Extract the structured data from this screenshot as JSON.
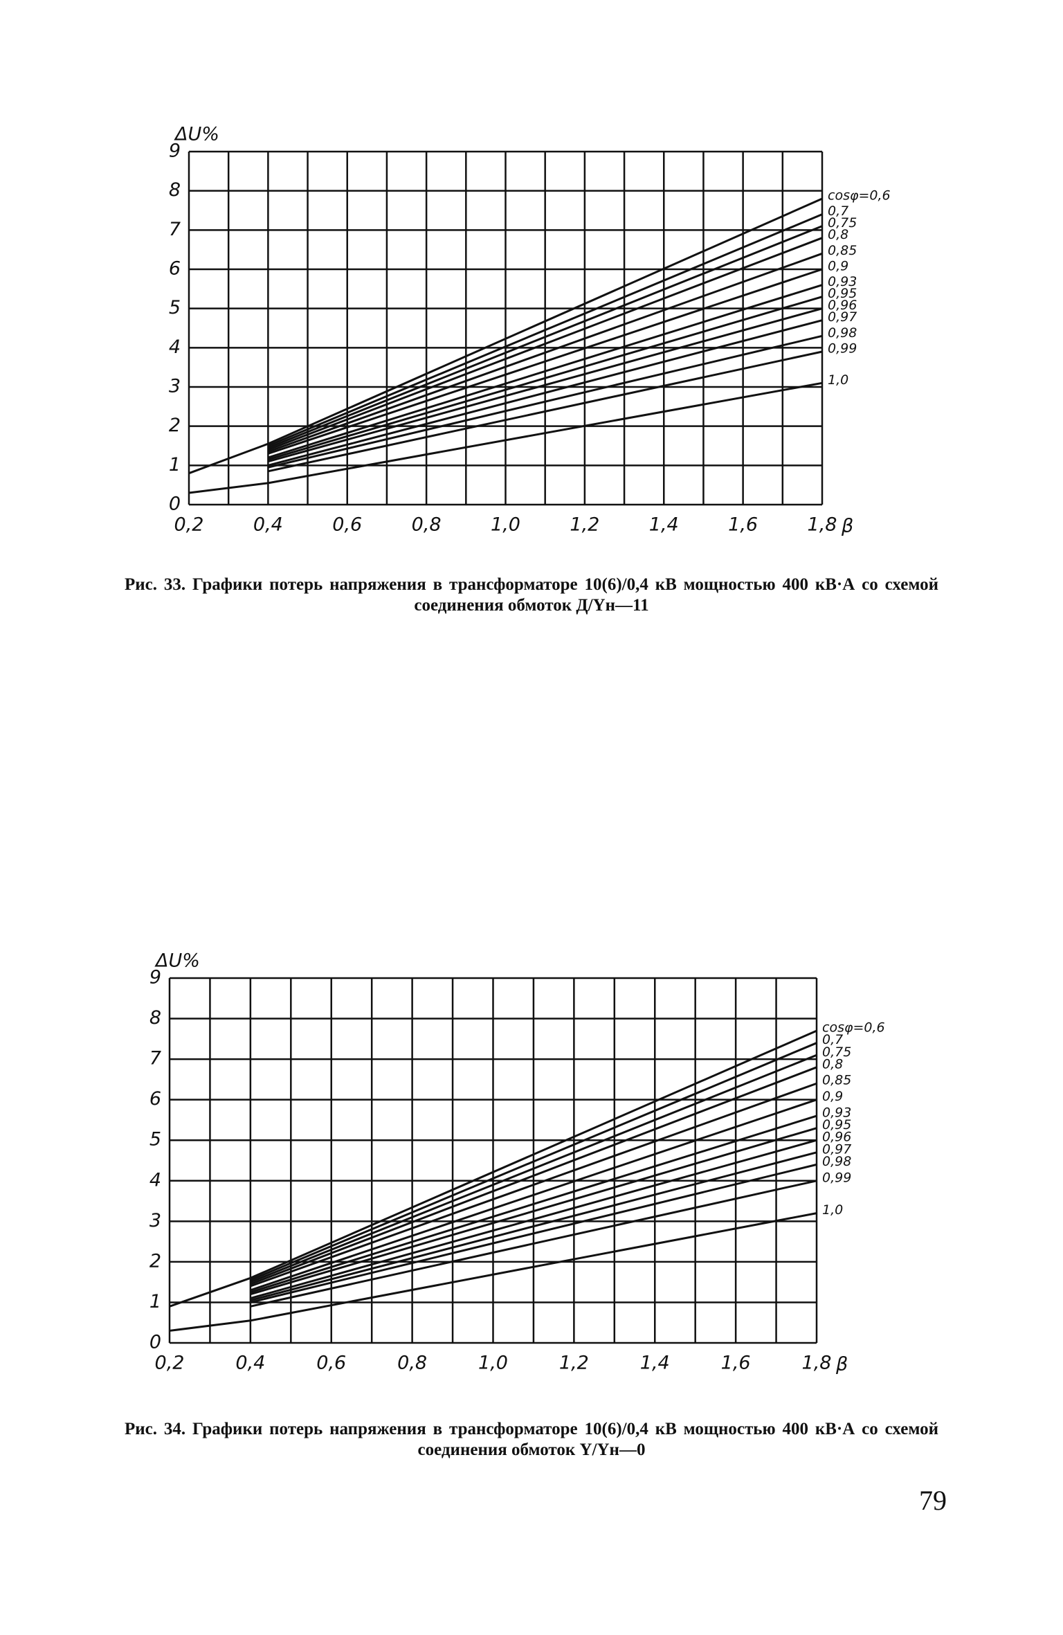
{
  "chart_data": [
    {
      "type": "line",
      "y_label": "ΔU%",
      "x_label": "β",
      "x": [
        0.2,
        0.4,
        1.8
      ],
      "xlim": [
        0.2,
        1.8
      ],
      "ylim": [
        0,
        9
      ],
      "xticks": [
        {
          "value": 0.2,
          "label": "0,2"
        },
        {
          "value": 0.4,
          "label": "0,4"
        },
        {
          "value": 0.6,
          "label": "0,6"
        },
        {
          "value": 0.8,
          "label": "0,8"
        },
        {
          "value": 1.0,
          "label": "1,0"
        },
        {
          "value": 1.2,
          "label": "1,2"
        },
        {
          "value": 1.4,
          "label": "1,4"
        },
        {
          "value": 1.6,
          "label": "1,6"
        },
        {
          "value": 1.8,
          "label": "1,8"
        }
      ],
      "xminorticks": [
        0.3,
        0.5,
        0.7,
        0.9,
        1.1,
        1.3,
        1.5,
        1.7
      ],
      "yticks": [
        0,
        1,
        2,
        3,
        4,
        5,
        6,
        7,
        8,
        9
      ],
      "grid": true,
      "series": [
        {
          "name": "cosφ=0,6",
          "color": "#111",
          "values": [
            0.8,
            1.55,
            7.8
          ]
        },
        {
          "name": "0,7",
          "color": "#111",
          "values": [
            null,
            1.5,
            7.4
          ]
        },
        {
          "name": "0,75",
          "color": "#111",
          "values": [
            null,
            1.45,
            7.1
          ]
        },
        {
          "name": "0,8",
          "color": "#111",
          "values": [
            null,
            1.4,
            6.8
          ]
        },
        {
          "name": "0,85",
          "color": "#111",
          "values": [
            null,
            1.35,
            6.4
          ]
        },
        {
          "name": "0,9",
          "color": "#111",
          "values": [
            null,
            1.3,
            6.0
          ]
        },
        {
          "name": "0,93",
          "color": "#111",
          "values": [
            null,
            1.2,
            5.6
          ]
        },
        {
          "name": "0,95",
          "color": "#111",
          "values": [
            null,
            1.15,
            5.3
          ]
        },
        {
          "name": "0,96",
          "color": "#111",
          "values": [
            null,
            1.1,
            5.0
          ]
        },
        {
          "name": "0,97",
          "color": "#111",
          "values": [
            null,
            1.0,
            4.7
          ]
        },
        {
          "name": "0,98",
          "color": "#111",
          "values": [
            null,
            0.95,
            4.3
          ]
        },
        {
          "name": "0,99",
          "color": "#111",
          "values": [
            null,
            0.85,
            3.9
          ]
        },
        {
          "name": "1,0",
          "color": "#111",
          "values": [
            0.3,
            0.55,
            3.1
          ]
        }
      ],
      "caption": "Рис. 33. Графики потерь напряжения в трансформаторе 10(6)/0,4 кВ мощностью 400 кВ·А со схемой соединения обмоток Д/Yн—11"
    },
    {
      "type": "line",
      "y_label": "ΔU%",
      "x_label": "β",
      "x": [
        0.2,
        0.4,
        1.8
      ],
      "xlim": [
        0.2,
        1.8
      ],
      "ylim": [
        0,
        9
      ],
      "xticks": [
        {
          "value": 0.2,
          "label": "0,2"
        },
        {
          "value": 0.4,
          "label": "0,4"
        },
        {
          "value": 0.6,
          "label": "0,6"
        },
        {
          "value": 0.8,
          "label": "0,8"
        },
        {
          "value": 1.0,
          "label": "1,0"
        },
        {
          "value": 1.2,
          "label": "1,2"
        },
        {
          "value": 1.4,
          "label": "1,4"
        },
        {
          "value": 1.6,
          "label": "1,6"
        },
        {
          "value": 1.8,
          "label": "1,8"
        }
      ],
      "xminorticks": [
        0.3,
        0.5,
        0.7,
        0.9,
        1.1,
        1.3,
        1.5,
        1.7
      ],
      "yticks": [
        0,
        1,
        2,
        3,
        4,
        5,
        6,
        7,
        8,
        9
      ],
      "grid": true,
      "series": [
        {
          "name": "cosφ=0,6",
          "color": "#111",
          "values": [
            0.9,
            1.6,
            7.7
          ]
        },
        {
          "name": "0,7",
          "color": "#111",
          "values": [
            null,
            1.55,
            7.4
          ]
        },
        {
          "name": "0,75",
          "color": "#111",
          "values": [
            null,
            1.5,
            7.1
          ]
        },
        {
          "name": "0,8",
          "color": "#111",
          "values": [
            null,
            1.45,
            6.8
          ]
        },
        {
          "name": "0,85",
          "color": "#111",
          "values": [
            null,
            1.4,
            6.4
          ]
        },
        {
          "name": "0,9",
          "color": "#111",
          "values": [
            null,
            1.3,
            6.0
          ]
        },
        {
          "name": "0,93",
          "color": "#111",
          "values": [
            null,
            1.25,
            5.6
          ]
        },
        {
          "name": "0,95",
          "color": "#111",
          "values": [
            null,
            1.2,
            5.3
          ]
        },
        {
          "name": "0,96",
          "color": "#111",
          "values": [
            null,
            1.1,
            5.0
          ]
        },
        {
          "name": "0,97",
          "color": "#111",
          "values": [
            null,
            1.05,
            4.7
          ]
        },
        {
          "name": "0,98",
          "color": "#111",
          "values": [
            null,
            1.0,
            4.4
          ]
        },
        {
          "name": "0,99",
          "color": "#111",
          "values": [
            null,
            0.9,
            4.0
          ]
        },
        {
          "name": "1,0",
          "color": "#111",
          "values": [
            0.3,
            0.55,
            3.2
          ]
        }
      ],
      "caption": "Рис. 34. Графики потерь напряжения в трансформаторе 10(6)/0,4 кВ мощностью 400 кВ·А со схемой соединения обмоток Y/Yн—0"
    }
  ],
  "page_number": "79"
}
